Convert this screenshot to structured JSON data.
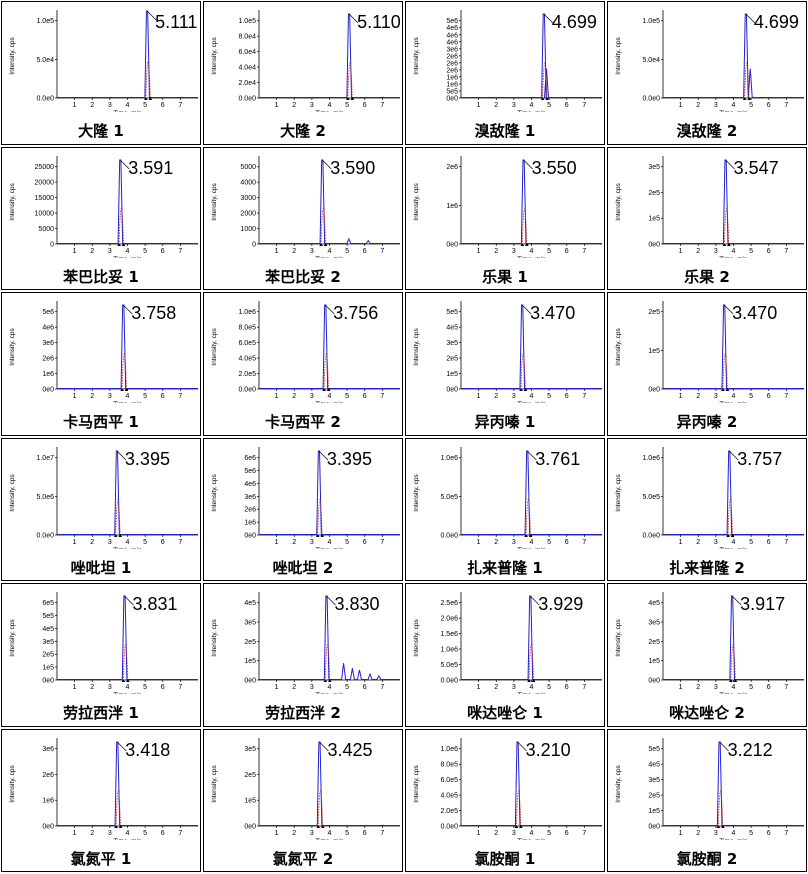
{
  "x_ticks": [
    "1",
    "2",
    "3",
    "4",
    "5",
    "6",
    "7"
  ],
  "x_label": "Time, min",
  "y_label": "Intensity, cps",
  "line_color": "#2020d0",
  "chart_data": [
    {
      "type": "line",
      "caption": "大隆 1",
      "rt": "5.111",
      "y_ticks": [
        "0.0e0",
        "5.0e4",
        "1.0e5"
      ],
      "ylim": [
        0,
        140000
      ],
      "peak_x": 5.11,
      "peak_height": 145000,
      "extras": []
    },
    {
      "type": "line",
      "caption": "大隆 2",
      "rt": "5.110",
      "y_ticks": [
        "0.0e0",
        "2.0e4",
        "4.0e4",
        "6.0e4",
        "8.0e4",
        "1.0e5"
      ],
      "ylim": [
        0,
        110000
      ],
      "peak_x": 5.11,
      "peak_height": 110000,
      "extras": []
    },
    {
      "type": "line",
      "caption": "溴敌隆 1",
      "rt": "4.699",
      "y_ticks": [
        "0e0",
        "5e5",
        "1e6",
        "1e6",
        "2e6",
        "2e6",
        "2e6",
        "3e6",
        "4e6",
        "4e6",
        "4e6",
        "5e6"
      ],
      "ylim": [
        0,
        5500000
      ],
      "peak_x": 4.7,
      "peak_height": 5500000,
      "extras": [
        [
          4.85,
          0.35
        ]
      ]
    },
    {
      "type": "line",
      "caption": "溴敌隆 2",
      "rt": "4.699",
      "y_ticks": [
        "0.0e0",
        "5.0e4",
        "1.0e5"
      ],
      "ylim": [
        0,
        140000
      ],
      "peak_x": 4.7,
      "peak_height": 140000,
      "extras": [
        [
          4.95,
          0.35
        ]
      ]
    },
    {
      "type": "line",
      "caption": "苯巴比妥 1",
      "rt": "3.591",
      "y_ticks": [
        "0",
        "5000",
        "10000",
        "15000",
        "20000",
        "25000"
      ],
      "ylim": [
        0,
        26000
      ],
      "peak_x": 3.59,
      "peak_height": 26000,
      "extras": []
    },
    {
      "type": "line",
      "caption": "苯巴比妥 2",
      "rt": "3.590",
      "y_ticks": [
        "0",
        "1000",
        "2000",
        "3000",
        "4000",
        "5000"
      ],
      "ylim": [
        0,
        5500
      ],
      "peak_x": 3.59,
      "peak_height": 5500,
      "extras": [
        [
          5.1,
          0.06
        ],
        [
          6.2,
          0.04
        ]
      ]
    },
    {
      "type": "line",
      "caption": "乐果 1",
      "rt": "3.550",
      "y_ticks": [
        "0e0",
        "1e6",
        "2e6"
      ],
      "ylim": [
        0,
        2800000
      ],
      "peak_x": 3.55,
      "peak_height": 2800000,
      "extras": []
    },
    {
      "type": "line",
      "caption": "乐果 2",
      "rt": "3.547",
      "y_ticks": [
        "0e0",
        "1e5",
        "2e5",
        "3e5"
      ],
      "ylim": [
        0,
        350000
      ],
      "peak_x": 3.55,
      "peak_height": 350000,
      "extras": []
    },
    {
      "type": "line",
      "caption": "卡马西平 1",
      "rt": "3.758",
      "y_ticks": [
        "0e0",
        "1e6",
        "2e6",
        "3e6",
        "4e6",
        "5e6"
      ],
      "ylim": [
        0,
        5200000
      ],
      "peak_x": 3.76,
      "peak_height": 5200000,
      "extras": []
    },
    {
      "type": "line",
      "caption": "卡马西平 2",
      "rt": "3.756",
      "y_ticks": [
        "0.0e0",
        "2.0e5",
        "4.0e5",
        "6.0e5",
        "8.0e5",
        "1.0e6"
      ],
      "ylim": [
        0,
        1100000
      ],
      "peak_x": 3.76,
      "peak_height": 1100000,
      "extras": []
    },
    {
      "type": "line",
      "caption": "异丙嗪 1",
      "rt": "3.470",
      "y_ticks": [
        "0e0",
        "1e5",
        "2e5",
        "3e5",
        "4e5",
        "5e5"
      ],
      "ylim": [
        0,
        550000
      ],
      "peak_x": 3.47,
      "peak_height": 550000,
      "extras": []
    },
    {
      "type": "line",
      "caption": "异丙嗪 2",
      "rt": "3.470",
      "y_ticks": [
        "0e0",
        "1e5",
        "2e5"
      ],
      "ylim": [
        0,
        280000
      ],
      "peak_x": 3.47,
      "peak_height": 280000,
      "extras": []
    },
    {
      "type": "line",
      "caption": "唑吡坦 1",
      "rt": "3.395",
      "y_ticks": [
        "0.0e0",
        "5.0e6",
        "1.0e7"
      ],
      "ylim": [
        0,
        13000000
      ],
      "peak_x": 3.4,
      "peak_height": 13000000,
      "extras": []
    },
    {
      "type": "line",
      "caption": "唑吡坦 2",
      "rt": "3.395",
      "y_ticks": [
        "0e0",
        "1e6",
        "2e6",
        "3e6",
        "4e6",
        "5e6",
        "6e6"
      ],
      "ylim": [
        0,
        6200000
      ],
      "peak_x": 3.4,
      "peak_height": 6200000,
      "extras": []
    },
    {
      "type": "line",
      "caption": "扎来普隆 1",
      "rt": "3.761",
      "y_ticks": [
        "0.0e0",
        "5.0e5",
        "1.0e6"
      ],
      "ylim": [
        0,
        1250000
      ],
      "peak_x": 3.76,
      "peak_height": 1250000,
      "extras": []
    },
    {
      "type": "line",
      "caption": "扎来普隆 2",
      "rt": "3.757",
      "y_ticks": [
        "0.0e0",
        "5.0e5",
        "1.0e6"
      ],
      "ylim": [
        0,
        1250000
      ],
      "peak_x": 3.76,
      "peak_height": 1250000,
      "extras": []
    },
    {
      "type": "line",
      "caption": "劳拉西泮 1",
      "rt": "3.831",
      "y_ticks": [
        "0e0",
        "1e5",
        "2e5",
        "3e5",
        "4e5",
        "5e5",
        "6e5"
      ],
      "ylim": [
        0,
        700000
      ],
      "peak_x": 3.83,
      "peak_height": 700000,
      "extras": []
    },
    {
      "type": "line",
      "caption": "劳拉西泮 2",
      "rt": "3.830",
      "y_ticks": [
        "0e0",
        "1e5",
        "2e5",
        "3e5",
        "4e5"
      ],
      "ylim": [
        0,
        480000
      ],
      "peak_x": 3.83,
      "peak_height": 480000,
      "extras": [
        [
          4.8,
          0.2
        ],
        [
          5.3,
          0.14
        ],
        [
          5.7,
          0.12
        ],
        [
          6.3,
          0.07
        ],
        [
          6.8,
          0.05
        ]
      ]
    },
    {
      "type": "line",
      "caption": "咪达唑仑 1",
      "rt": "3.929",
      "y_ticks": [
        "0.0e0",
        "5.0e5",
        "1.0e6",
        "1.5e6",
        "2.0e6",
        "2.5e6"
      ],
      "ylim": [
        0,
        2700000
      ],
      "peak_x": 3.93,
      "peak_height": 2700000,
      "extras": []
    },
    {
      "type": "line",
      "caption": "咪达唑仑 2",
      "rt": "3.917",
      "y_ticks": [
        "0e0",
        "1e5",
        "2e5",
        "3e5",
        "4e5"
      ],
      "ylim": [
        0,
        480000
      ],
      "peak_x": 3.92,
      "peak_height": 480000,
      "extras": []
    },
    {
      "type": "line",
      "caption": "氯氮平 1",
      "rt": "3.418",
      "y_ticks": [
        "0e0",
        "1e6",
        "2e6",
        "3e6"
      ],
      "ylim": [
        0,
        3200000
      ],
      "peak_x": 3.42,
      "peak_height": 3200000,
      "extras": []
    },
    {
      "type": "line",
      "caption": "氯氮平 2",
      "rt": "3.425",
      "y_ticks": [
        "0e0",
        "1e5",
        "2e5",
        "3e5"
      ],
      "ylim": [
        0,
        380000
      ],
      "peak_x": 3.43,
      "peak_height": 380000,
      "extras": []
    },
    {
      "type": "line",
      "caption": "氯胺酮 1",
      "rt": "3.210",
      "y_ticks": [
        "0.0e0",
        "2.0e5",
        "4.0e5",
        "6.0e5",
        "8.0e5",
        "1.0e6"
      ],
      "ylim": [
        0,
        1100000
      ],
      "peak_x": 3.21,
      "peak_height": 1100000,
      "extras": []
    },
    {
      "type": "line",
      "caption": "氯胺酮 2",
      "rt": "3.212",
      "y_ticks": [
        "0e0",
        "1e5",
        "2e5",
        "3e5",
        "4e5",
        "5e5"
      ],
      "ylim": [
        0,
        520000
      ],
      "peak_x": 3.21,
      "peak_height": 520000,
      "extras": []
    }
  ]
}
